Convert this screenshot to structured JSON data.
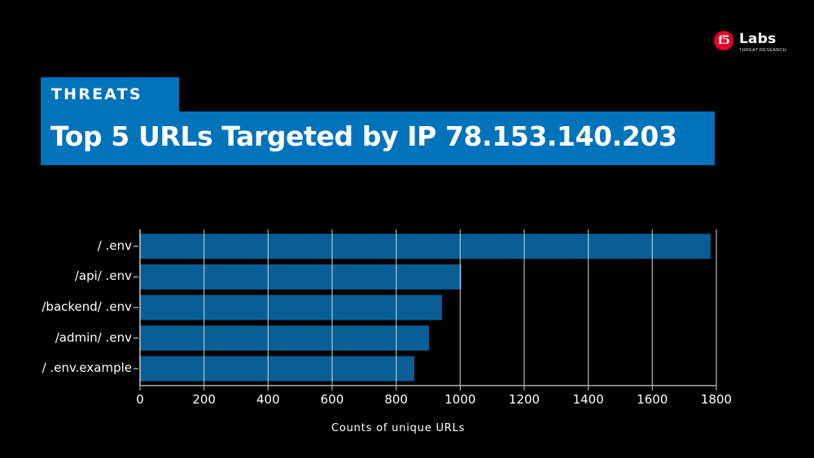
{
  "brand": {
    "badge": "f5",
    "name": "Labs",
    "subtitle": "THREAT RESEARCH",
    "badge_color": "#e4002b"
  },
  "header": {
    "category": "THREATS",
    "title": "Top 5 URLs Targeted by IP 78.153.140.203",
    "accent_color": "#0073bb"
  },
  "chart_data": {
    "type": "bar",
    "orientation": "horizontal",
    "title": "Top 5 URLs Targeted by IP 78.153.140.203",
    "categories": [
      "/ .env",
      "/api/ .env",
      "/backend/ .env",
      "/admin/ .env",
      "/ .env.example"
    ],
    "values": [
      1782,
      1004,
      943,
      903,
      857
    ],
    "xlabel": "Counts of unique URLs",
    "ylabel": "",
    "xlim": [
      0,
      1800
    ],
    "xticks": [
      "0",
      "200",
      "400",
      "600",
      "800",
      "1000",
      "1200",
      "1400",
      "1600",
      "1800"
    ],
    "grid": true,
    "bar_color": "#0a5e96",
    "legend": null
  }
}
